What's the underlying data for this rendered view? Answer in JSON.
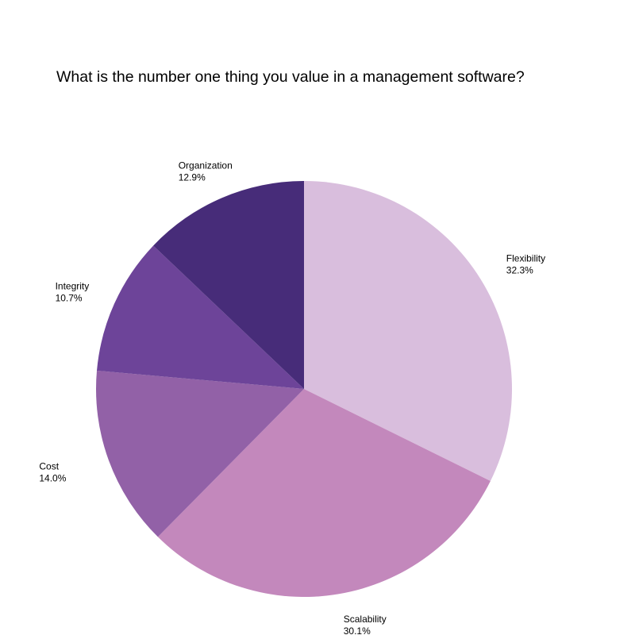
{
  "chart_data": {
    "type": "pie",
    "title": "What is the number one thing you value in a management software?",
    "slices": [
      {
        "label": "Flexibility",
        "value": 32.3,
        "display": "32.3%",
        "color": "#d9bedd"
      },
      {
        "label": "Scalability",
        "value": 30.1,
        "display": "30.1%",
        "color": "#c388bc"
      },
      {
        "label": "Cost",
        "value": 14.0,
        "display": "14.0%",
        "color": "#9261a7"
      },
      {
        "label": "Integrity",
        "value": 10.7,
        "display": "10.7%",
        "color": "#6d4499"
      },
      {
        "label": "Organization",
        "value": 12.9,
        "display": "12.9%",
        "color": "#472c79"
      }
    ],
    "start_angle": "12 o'clock",
    "direction": "clockwise",
    "legend": "none"
  }
}
